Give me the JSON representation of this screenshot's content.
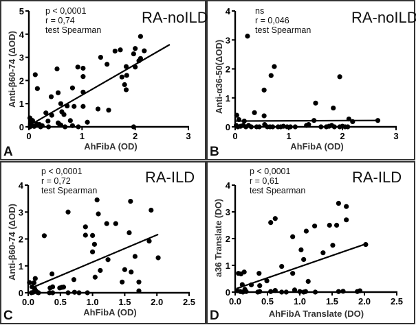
{
  "chart_data": [
    {
      "type": "scatter",
      "panel_label": "A",
      "group": "RA-noILD",
      "stats": [
        "p < 0,0001",
        "r = 0,74",
        "test Spearman"
      ],
      "xlabel": "AhFibA (OD)",
      "ylabel": "Anti-β60-74 (ΔOD)",
      "xlim": [
        0,
        3
      ],
      "ylim": [
        0,
        5
      ],
      "xticks": [
        0,
        1,
        2,
        3
      ],
      "xtick_labels": [
        "0",
        "1",
        "2",
        "3"
      ],
      "yticks": [
        0,
        1,
        2,
        3,
        4,
        5
      ],
      "ytick_labels": [
        "0",
        "1",
        "2",
        "3",
        "4",
        "5"
      ],
      "fit_line": {
        "x": [
          0,
          2.65
        ],
        "y": [
          0.05,
          3.55
        ]
      },
      "points": [
        [
          0.12,
          2.25
        ],
        [
          0.16,
          1.65
        ],
        [
          0.42,
          1.3
        ],
        [
          0.53,
          2.5
        ],
        [
          0.55,
          1.47
        ],
        [
          0.6,
          1.0
        ],
        [
          0.72,
          0.9
        ],
        [
          0.82,
          1.68
        ],
        [
          0.92,
          2.58
        ],
        [
          1.02,
          2.53
        ],
        [
          1.02,
          2.17
        ],
        [
          1.02,
          1.5
        ],
        [
          1.02,
          0.88
        ],
        [
          0.85,
          0.88
        ],
        [
          1.35,
          3.0
        ],
        [
          1.47,
          2.7
        ],
        [
          1.3,
          0.77
        ],
        [
          1.5,
          0.72
        ],
        [
          1.62,
          3.27
        ],
        [
          1.72,
          3.32
        ],
        [
          1.75,
          2.15
        ],
        [
          1.8,
          1.82
        ],
        [
          1.83,
          2.6
        ],
        [
          1.84,
          2.22
        ],
        [
          1.83,
          1.6
        ],
        [
          1.97,
          3.15
        ],
        [
          2.0,
          3.38
        ],
        [
          2.0,
          2.58
        ],
        [
          2.07,
          2.85
        ],
        [
          2.1,
          2.95
        ],
        [
          2.1,
          3.9
        ],
        [
          2.17,
          3.28
        ],
        [
          0.32,
          0.6
        ],
        [
          0.43,
          0.5
        ],
        [
          0.62,
          0.65
        ],
        [
          0.66,
          0.53
        ],
        [
          0.36,
          0.25
        ],
        [
          0.78,
          0.27
        ],
        [
          0.55,
          0.17
        ],
        [
          0.6,
          0.08
        ],
        [
          1.1,
          0.2
        ],
        [
          0.02,
          0.38
        ],
        [
          0.04,
          0.3
        ],
        [
          0.07,
          0.27
        ],
        [
          0.03,
          0.12
        ],
        [
          0.05,
          0.05
        ],
        [
          0.1,
          0.02
        ],
        [
          0.15,
          0.12
        ],
        [
          0.2,
          0.1
        ],
        [
          0.25,
          0.05
        ],
        [
          0.22,
          0.0
        ],
        [
          0.37,
          0.0
        ],
        [
          0.58,
          0.1
        ],
        [
          0.68,
          0.0
        ],
        [
          0.82,
          0.05
        ],
        [
          0.93,
          0.0
        ],
        [
          1.97,
          0.0
        ],
        [
          0.02,
          0.0
        ]
      ]
    },
    {
      "type": "scatter",
      "panel_label": "B",
      "group": "RA-noILD",
      "stats": [
        "ns",
        "r = 0,046",
        "test Spearman"
      ],
      "xlabel": "AhFibA (OD)",
      "ylabel": "Anti-α36-50(ΔOD)",
      "xlim": [
        0,
        3
      ],
      "ylim": [
        0,
        4
      ],
      "xticks": [
        0,
        1,
        2,
        3
      ],
      "xtick_labels": [
        "0",
        "1",
        "2",
        "3"
      ],
      "yticks": [
        0,
        1,
        2,
        3,
        4
      ],
      "ytick_labels": [
        "0",
        "1",
        "2",
        "3",
        "4"
      ],
      "fit_line": {
        "x": [
          0,
          2.65
        ],
        "y": [
          0.2,
          0.22
        ]
      },
      "points": [
        [
          0.23,
          3.13
        ],
        [
          0.67,
          1.77
        ],
        [
          0.73,
          2.08
        ],
        [
          0.54,
          1.27
        ],
        [
          0.36,
          0.49
        ],
        [
          0.54,
          0.38
        ],
        [
          1.5,
          0.82
        ],
        [
          1.83,
          0.65
        ],
        [
          1.95,
          1.73
        ],
        [
          0.03,
          0.4
        ],
        [
          0.07,
          0.25
        ],
        [
          0.17,
          0.2
        ],
        [
          1.47,
          0.22
        ],
        [
          2.12,
          0.27
        ],
        [
          2.19,
          0.18
        ],
        [
          2.66,
          0.22
        ],
        [
          0.02,
          0.05
        ],
        [
          0.05,
          0.0
        ],
        [
          0.1,
          0.02
        ],
        [
          0.15,
          0.05
        ],
        [
          0.2,
          0.0
        ],
        [
          0.25,
          0.05
        ],
        [
          0.3,
          0.0
        ],
        [
          0.4,
          0.0
        ],
        [
          0.45,
          0.0
        ],
        [
          0.55,
          0.08
        ],
        [
          0.6,
          0.0
        ],
        [
          0.65,
          0.0
        ],
        [
          0.7,
          0.0
        ],
        [
          0.8,
          0.0
        ],
        [
          0.85,
          0.0
        ],
        [
          0.9,
          0.02
        ],
        [
          0.97,
          0.0
        ],
        [
          1.03,
          0.0
        ],
        [
          1.12,
          0.0
        ],
        [
          1.33,
          0.05
        ],
        [
          1.37,
          0.08
        ],
        [
          1.6,
          0.0
        ],
        [
          1.7,
          0.0
        ],
        [
          1.75,
          0.02
        ],
        [
          1.8,
          0.05
        ],
        [
          1.85,
          0.0
        ],
        [
          1.95,
          0.0
        ],
        [
          2.0,
          0.02
        ],
        [
          2.05,
          0.0
        ],
        [
          2.1,
          0.0
        ]
      ]
    },
    {
      "type": "scatter",
      "panel_label": "C",
      "group": "RA-ILD",
      "stats": [
        "p < 0,0001",
        "r = 0,72",
        "test Spearman"
      ],
      "xlabel": "AhFibA (OD)",
      "ylabel": "Anti-β60-74 (ΔOD)",
      "xlim": [
        0,
        2.5
      ],
      "ylim": [
        0,
        4
      ],
      "xticks": [
        0,
        0.5,
        1.0,
        1.5,
        2.0,
        2.5
      ],
      "xtick_labels": [
        "0.0",
        "0.5",
        "1.0",
        "1.5",
        "2.0",
        "2.5"
      ],
      "yticks": [
        0,
        1,
        2,
        3,
        4
      ],
      "ytick_labels": [
        "0",
        "1",
        "2",
        "3",
        "4"
      ],
      "fit_line": {
        "x": [
          0.05,
          2.02
        ],
        "y": [
          0.18,
          2.17
        ]
      },
      "points": [
        [
          0.25,
          2.12
        ],
        [
          0.62,
          3.0
        ],
        [
          0.89,
          2.45
        ],
        [
          0.89,
          2.14
        ],
        [
          1.0,
          2.13
        ],
        [
          1.0,
          1.52
        ],
        [
          1.03,
          1.8
        ],
        [
          1.07,
          3.45
        ],
        [
          1.09,
          2.93
        ],
        [
          1.22,
          2.57
        ],
        [
          1.24,
          1.23
        ],
        [
          1.36,
          2.57
        ],
        [
          1.57,
          2.23
        ],
        [
          1.59,
          3.4
        ],
        [
          1.66,
          1.35
        ],
        [
          1.88,
          1.92
        ],
        [
          1.91,
          3.07
        ],
        [
          2.02,
          1.3
        ],
        [
          1.12,
          0.83
        ],
        [
          1.04,
          0.58
        ],
        [
          1.5,
          0.86
        ],
        [
          1.6,
          0.77
        ],
        [
          1.46,
          0.4
        ],
        [
          1.72,
          0.4
        ],
        [
          1.72,
          0.07
        ],
        [
          0.37,
          0.7
        ],
        [
          0.71,
          0.49
        ],
        [
          0.38,
          0.22
        ],
        [
          0.34,
          0.18
        ],
        [
          0.49,
          0.18
        ],
        [
          0.52,
          0.2
        ],
        [
          0.55,
          0.21
        ],
        [
          0.11,
          0.53
        ],
        [
          0.02,
          0.38
        ],
        [
          0.09,
          0.37
        ],
        [
          0.06,
          0.22
        ],
        [
          0.1,
          0.15
        ],
        [
          0.12,
          0.07
        ],
        [
          0.05,
          0.0
        ],
        [
          0.08,
          0.02
        ],
        [
          0.14,
          0.02
        ],
        [
          0.16,
          0.0
        ],
        [
          0.33,
          0.0
        ],
        [
          0.38,
          0.0
        ],
        [
          0.62,
          0.0
        ],
        [
          0.72,
          0.02
        ],
        [
          0.79,
          0.0
        ],
        [
          0.92,
          0.0
        ]
      ]
    },
    {
      "type": "scatter",
      "panel_label": "D",
      "group": "RA-ILD",
      "stats": [
        "p < 0,0001",
        "r = 0,61",
        "test Spearman"
      ],
      "xlabel": "AhFibA Translate (DO)",
      "ylabel": "a36 Translate (DO)",
      "xlim": [
        0,
        2.5
      ],
      "ylim": [
        0,
        4
      ],
      "xticks": [
        0,
        0.5,
        1.0,
        1.5,
        2.0,
        2.5
      ],
      "xtick_labels": [
        "0.0",
        "0.5",
        "1.0",
        "1.5",
        "2.0",
        "2.5"
      ],
      "yticks": [
        0,
        1,
        2,
        3,
        4
      ],
      "ytick_labels": [
        "0",
        "1",
        "2",
        "3",
        "4"
      ],
      "fit_line": {
        "x": [
          0.02,
          2.02
        ],
        "y": [
          0.13,
          1.8
        ]
      },
      "points": [
        [
          0.55,
          2.6
        ],
        [
          0.62,
          2.75
        ],
        [
          0.89,
          2.07
        ],
        [
          1.1,
          2.28
        ],
        [
          1.23,
          2.47
        ],
        [
          1.46,
          2.5
        ],
        [
          1.57,
          2.5
        ],
        [
          1.6,
          3.32
        ],
        [
          1.72,
          3.2
        ],
        [
          1.72,
          2.7
        ],
        [
          2.02,
          1.78
        ],
        [
          1.51,
          1.75
        ],
        [
          1.36,
          1.47
        ],
        [
          1.02,
          1.58
        ],
        [
          1.06,
          1.22
        ],
        [
          0.72,
          0.96
        ],
        [
          0.89,
          0.7
        ],
        [
          1.13,
          0.4
        ],
        [
          0.37,
          0.7
        ],
        [
          0.49,
          0.42
        ],
        [
          0.38,
          0.24
        ],
        [
          0.25,
          0.27
        ],
        [
          0.05,
          0.7
        ],
        [
          0.09,
          0.68
        ],
        [
          0.14,
          0.75
        ],
        [
          0.11,
          0.28
        ],
        [
          0.15,
          0.1
        ],
        [
          0.03,
          0.05
        ],
        [
          0.08,
          0.02
        ],
        [
          0.12,
          0.0
        ],
        [
          0.17,
          0.02
        ],
        [
          0.35,
          0.0
        ],
        [
          0.38,
          0.02
        ],
        [
          0.55,
          0.02
        ],
        [
          0.62,
          0.06
        ],
        [
          0.72,
          0.0
        ],
        [
          0.79,
          0.0
        ],
        [
          0.92,
          0.08
        ],
        [
          1.0,
          0.02
        ],
        [
          1.06,
          0.0
        ],
        [
          1.09,
          0.02
        ],
        [
          1.24,
          0.0
        ],
        [
          1.6,
          0.02
        ],
        [
          1.67,
          0.03
        ],
        [
          1.89,
          0.02
        ],
        [
          1.93,
          0.05
        ]
      ]
    }
  ]
}
